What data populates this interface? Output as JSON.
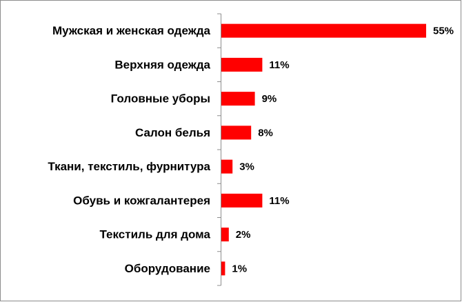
{
  "chart_data": {
    "type": "bar",
    "orientation": "horizontal",
    "categories": [
      "Мужская и женская одежда",
      "Верхняя одежда",
      "Головные уборы",
      "Салон белья",
      "Ткани, текстиль, фурнитура",
      "Обувь и кожгалантерея",
      "Текстиль для дома",
      "Оборудование"
    ],
    "values": [
      55,
      11,
      9,
      8,
      3,
      11,
      2,
      1
    ],
    "value_labels": [
      "55%",
      "11%",
      "9%",
      "8%",
      "3%",
      "11%",
      "2%",
      "1%"
    ],
    "color": "#ff0000"
  }
}
